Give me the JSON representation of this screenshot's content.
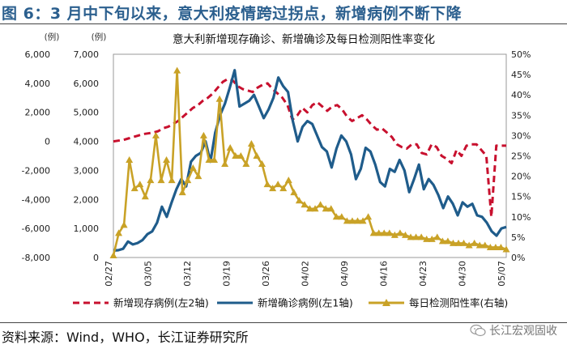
{
  "header": {
    "title": "图 6：3 月中下旬以来，意大利疫情跨过拐点，新增病例不断下降"
  },
  "footer": {
    "source": "资料来源：Wind，WHO，长江证券研究所",
    "watermark": "长江宏观固收"
  },
  "chart_data": {
    "type": "line",
    "title": "意大利新增现存确诊、新增确诊及每日检测阳性率变化",
    "axes": {
      "y_outer": {
        "label": "(例)",
        "min": -8000,
        "max": 6000,
        "ticks": [
          "6,000",
          "4,000",
          "2,000",
          "0",
          "-2,000",
          "-4,000",
          "-6,000",
          "-8,000"
        ]
      },
      "y_inner": {
        "label": "(例)",
        "min": 0,
        "max": 7000,
        "ticks": [
          "7,000",
          "6,000",
          "5,000",
          "4,000",
          "3,000",
          "2,000",
          "1,000",
          "0"
        ]
      },
      "y_right": {
        "label": "",
        "min": 0,
        "max": 50,
        "ticks": [
          "50%",
          "45%",
          "40%",
          "35%",
          "30%",
          "25%",
          "20%",
          "15%",
          "10%",
          "5%",
          "0%"
        ]
      }
    },
    "x_ticks": [
      "02/27",
      "03/05",
      "03/12",
      "03/19",
      "03/26",
      "04/02",
      "04/09",
      "04/16",
      "04/23",
      "04/30",
      "05/07"
    ],
    "series": [
      {
        "name": "新增现存病例(左2轴)",
        "axis": "y_outer",
        "color": "#c8102e",
        "style": "dashed",
        "values": [
          0,
          50,
          100,
          200,
          300,
          400,
          500,
          550,
          600,
          700,
          900,
          1000,
          1200,
          1400,
          1700,
          2000,
          2300,
          2500,
          2800,
          3000,
          3300,
          3700,
          4100,
          4300,
          4200,
          3800,
          3600,
          3500,
          3400,
          3700,
          3900,
          4000,
          3600,
          3300,
          3000,
          2500,
          1500,
          1800,
          2300,
          2000,
          2500,
          2700,
          2400,
          2100,
          2400,
          2500,
          2200,
          1700,
          1400,
          1600,
          1800,
          1500,
          1100,
          800,
          900,
          600,
          300,
          -200,
          -400,
          -500,
          -200,
          -200,
          -800,
          -900,
          -200,
          -400,
          -1000,
          -1200,
          -1500,
          -600,
          -1000,
          -300,
          -200,
          -200,
          -600,
          -1000,
          -5200,
          -300,
          -300,
          -300
        ]
      },
      {
        "name": "新增确诊病例(左1轴)",
        "axis": "y_inner",
        "color": "#1f5c8b",
        "style": "solid",
        "values": [
          240,
          250,
          300,
          550,
          450,
          500,
          600,
          800,
          900,
          1200,
          1750,
          1400,
          1900,
          2350,
          2700,
          2450,
          3300,
          3500,
          3600,
          4000,
          3300,
          4300,
          4900,
          5300,
          5850,
          6450,
          5200,
          5300,
          5400,
          5600,
          5200,
          4800,
          5100,
          5500,
          6200,
          5900,
          5700,
          4700,
          4000,
          4500,
          4700,
          4600,
          4200,
          3800,
          3650,
          3100,
          3750,
          4200,
          4000,
          3550,
          2700,
          3050,
          3780,
          3650,
          3200,
          2600,
          2450,
          3050,
          2950,
          3360,
          3000,
          2250,
          2700,
          3200,
          2350,
          2700,
          2500,
          2150,
          1700,
          2100,
          1850,
          1450,
          1900,
          1750,
          1850,
          1450,
          1400,
          1200,
          900,
          750,
          1000,
          1050
        ]
      },
      {
        "name": "每日检测阳性率(右轴)",
        "axis": "y_right",
        "color": "#c9a227",
        "style": "solid-triangle",
        "values": [
          0.5,
          6,
          8,
          24,
          17,
          18,
          15,
          19,
          30,
          19,
          24,
          19,
          46,
          16,
          19,
          22,
          20,
          30,
          24,
          24,
          39,
          23,
          27,
          25,
          25,
          23,
          28,
          25,
          23,
          18,
          17,
          18,
          17,
          19,
          16,
          14,
          13,
          12,
          12,
          13,
          12,
          12,
          10,
          10,
          9,
          9,
          9,
          9,
          10,
          6,
          6,
          6,
          6,
          5.5,
          6,
          5.5,
          5,
          5,
          5,
          4.5,
          4.5,
          5,
          4,
          4,
          3.5,
          3.5,
          3.5,
          3,
          3.5,
          3,
          3,
          2.5,
          2.5,
          2.5,
          2
        ]
      }
    ]
  }
}
